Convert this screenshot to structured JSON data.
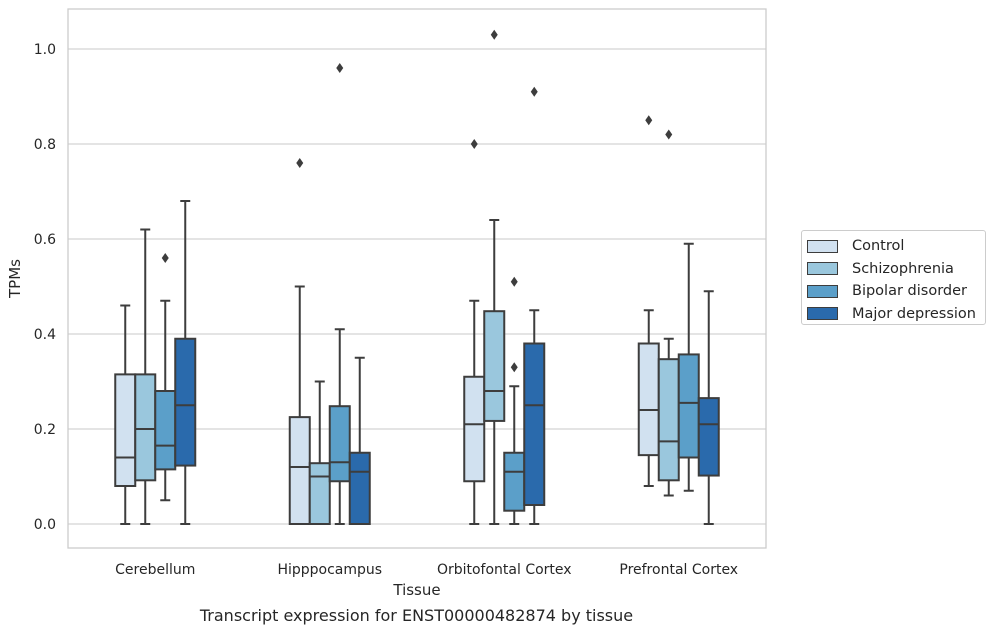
{
  "chart_data": {
    "type": "boxplot",
    "title": "",
    "caption": "Transcript expression for ENST00000482874 by tissue",
    "xlabel": "Tissue",
    "ylabel": "TPMs",
    "ylim": [
      -0.05,
      1.08
    ],
    "yticks": [
      0.0,
      0.2,
      0.4,
      0.6,
      0.8,
      1.0
    ],
    "ytick_labels": [
      "0.0",
      "0.2",
      "0.4",
      "0.6",
      "0.8",
      "1.0"
    ],
    "grid": true,
    "legend_position": "right",
    "categories": [
      "Cerebellum",
      "Hipppocampus",
      "Orbitofontal Cortex",
      "Prefrontal Cortex"
    ],
    "series": [
      {
        "name": "Control",
        "color": "#d1e1f0",
        "boxes": [
          {
            "whislo": 0.0,
            "q1": 0.08,
            "med": 0.14,
            "q3": 0.315,
            "whishi": 0.46,
            "fliers": []
          },
          {
            "whislo": 0.0,
            "q1": 0.0,
            "med": 0.12,
            "q3": 0.225,
            "whishi": 0.5,
            "fliers": [
              0.76
            ]
          },
          {
            "whislo": 0.0,
            "q1": 0.09,
            "med": 0.21,
            "q3": 0.31,
            "whishi": 0.47,
            "fliers": [
              0.8
            ]
          },
          {
            "whislo": 0.08,
            "q1": 0.145,
            "med": 0.24,
            "q3": 0.38,
            "whishi": 0.45,
            "fliers": [
              0.85
            ]
          }
        ]
      },
      {
        "name": "Schizophrenia",
        "color": "#9ac7dd",
        "boxes": [
          {
            "whislo": 0.0,
            "q1": 0.092,
            "med": 0.2,
            "q3": 0.315,
            "whishi": 0.62,
            "fliers": []
          },
          {
            "whislo": 0.0,
            "q1": 0.0,
            "med": 0.1,
            "q3": 0.128,
            "whishi": 0.3,
            "fliers": []
          },
          {
            "whislo": 0.0,
            "q1": 0.217,
            "med": 0.28,
            "q3": 0.448,
            "whishi": 0.64,
            "fliers": [
              1.03
            ]
          },
          {
            "whislo": 0.06,
            "q1": 0.092,
            "med": 0.174,
            "q3": 0.347,
            "whishi": 0.39,
            "fliers": [
              0.82
            ]
          }
        ]
      },
      {
        "name": "Bipolar disorder",
        "color": "#5b9fc9",
        "boxes": [
          {
            "whislo": 0.05,
            "q1": 0.115,
            "med": 0.165,
            "q3": 0.28,
            "whishi": 0.47,
            "fliers": [
              0.56
            ]
          },
          {
            "whislo": 0.0,
            "q1": 0.09,
            "med": 0.13,
            "q3": 0.248,
            "whishi": 0.41,
            "fliers": [
              0.96
            ]
          },
          {
            "whislo": 0.0,
            "q1": 0.028,
            "med": 0.11,
            "q3": 0.15,
            "whishi": 0.29,
            "fliers": [
              0.33,
              0.51
            ]
          },
          {
            "whislo": 0.07,
            "q1": 0.14,
            "med": 0.255,
            "q3": 0.357,
            "whishi": 0.59,
            "fliers": []
          }
        ]
      },
      {
        "name": "Major depression",
        "color": "#2a6aac",
        "boxes": [
          {
            "whislo": 0.0,
            "q1": 0.123,
            "med": 0.25,
            "q3": 0.39,
            "whishi": 0.68,
            "fliers": []
          },
          {
            "whislo": 0.0,
            "q1": 0.0,
            "med": 0.11,
            "q3": 0.15,
            "whishi": 0.35,
            "fliers": []
          },
          {
            "whislo": 0.0,
            "q1": 0.04,
            "med": 0.25,
            "q3": 0.38,
            "whishi": 0.45,
            "fliers": [
              0.91
            ]
          },
          {
            "whislo": 0.0,
            "q1": 0.102,
            "med": 0.21,
            "q3": 0.265,
            "whishi": 0.49,
            "fliers": []
          }
        ]
      }
    ]
  }
}
